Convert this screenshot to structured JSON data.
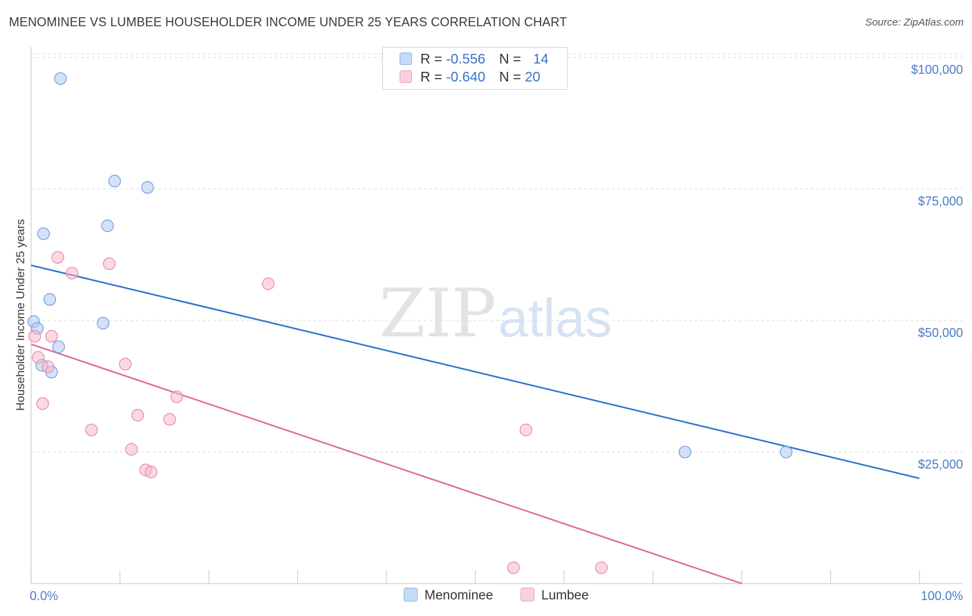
{
  "header": {
    "title": "MENOMINEE VS LUMBEE HOUSEHOLDER INCOME UNDER 25 YEARS CORRELATION CHART",
    "source": "Source: ZipAtlas.com"
  },
  "watermark": {
    "zip": "ZIP",
    "atlas": "atlas"
  },
  "legend": {
    "rows": [
      {
        "r_label": "R = ",
        "r_value": "-0.556",
        "n_label": "N = ",
        "n_value": "14",
        "color": "#aecbf0"
      },
      {
        "r_label": "R = ",
        "r_value": "-0.640",
        "n_label": "N = ",
        "n_value": "20",
        "color": "#f7b9cc"
      }
    ]
  },
  "chart_data": {
    "type": "scatter",
    "title": "MENOMINEE VS LUMBEE HOUSEHOLDER INCOME UNDER 25 YEARS CORRELATION CHART",
    "xlabel": "",
    "ylabel": "Householder Income Under 25 years",
    "xlim": [
      0,
      100
    ],
    "ylim": [
      0,
      102000
    ],
    "x_tick_labels": [
      "0.0%",
      "100.0%"
    ],
    "y_ticks": [
      25000,
      50000,
      75000,
      100000
    ],
    "y_tick_labels": [
      "$25,000",
      "$50,000",
      "$75,000",
      "$100,000"
    ],
    "grid": true,
    "legend_position": "top-center",
    "series": [
      {
        "name": "Menominee",
        "color": "#aecbf0",
        "stroke": "#6f9fdc",
        "line_color": "#2e6fd0",
        "points": [
          {
            "x": 3.3,
            "y": 96000
          },
          {
            "x": 9.4,
            "y": 76500
          },
          {
            "x": 13.1,
            "y": 75300
          },
          {
            "x": 1.4,
            "y": 66500
          },
          {
            "x": 8.6,
            "y": 68000
          },
          {
            "x": 2.1,
            "y": 54000
          },
          {
            "x": 8.1,
            "y": 49500
          },
          {
            "x": 0.3,
            "y": 49800
          },
          {
            "x": 0.7,
            "y": 48500
          },
          {
            "x": 3.1,
            "y": 45000
          },
          {
            "x": 1.2,
            "y": 41500
          },
          {
            "x": 2.3,
            "y": 40200
          },
          {
            "x": 73.6,
            "y": 25000
          },
          {
            "x": 85.0,
            "y": 25000
          }
        ],
        "trend": {
          "x": [
            0,
            100
          ],
          "y": [
            60500,
            20000
          ]
        }
      },
      {
        "name": "Lumbee",
        "color": "#f7b9cc",
        "stroke": "#e889a8",
        "line_color": "#e06a95",
        "points": [
          {
            "x": 3.0,
            "y": 62000
          },
          {
            "x": 8.8,
            "y": 60800
          },
          {
            "x": 4.6,
            "y": 59000
          },
          {
            "x": 26.7,
            "y": 57000
          },
          {
            "x": 0.4,
            "y": 47000
          },
          {
            "x": 2.3,
            "y": 47000
          },
          {
            "x": 0.8,
            "y": 43000
          },
          {
            "x": 10.6,
            "y": 41700
          },
          {
            "x": 1.9,
            "y": 41200
          },
          {
            "x": 16.4,
            "y": 35500
          },
          {
            "x": 1.3,
            "y": 34200
          },
          {
            "x": 12.0,
            "y": 32000
          },
          {
            "x": 15.6,
            "y": 31200
          },
          {
            "x": 6.8,
            "y": 29200
          },
          {
            "x": 55.7,
            "y": 29200
          },
          {
            "x": 11.3,
            "y": 25500
          },
          {
            "x": 12.9,
            "y": 21600
          },
          {
            "x": 13.5,
            "y": 21200
          },
          {
            "x": 54.3,
            "y": 3000
          },
          {
            "x": 64.2,
            "y": 3000
          }
        ],
        "trend": {
          "x": [
            0,
            80
          ],
          "y": [
            45500,
            0
          ]
        }
      }
    ]
  }
}
